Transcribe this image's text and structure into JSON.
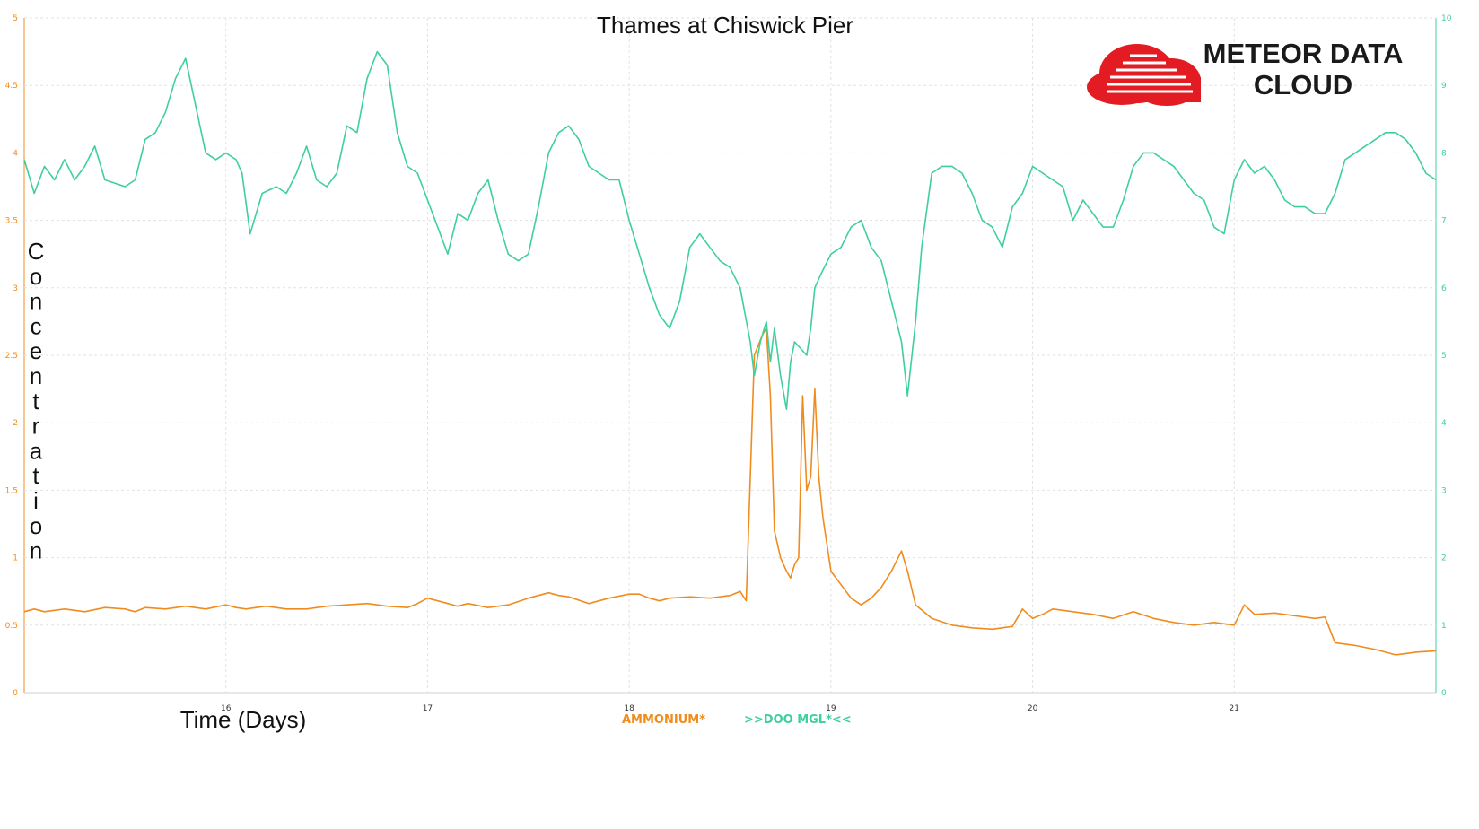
{
  "brand": {
    "logo_line1": "METEOR DATA",
    "logo_line2": "CLOUD",
    "logo_color": "#e31b23"
  },
  "chart_data": {
    "type": "line",
    "title": "Thames at Chiswick Pier",
    "xlabel": "Time (Days)",
    "ylabel": "Concentration",
    "grid": true,
    "legend_placement": "bottom-center",
    "xlim": [
      15.0,
      22.0
    ],
    "x_ticks": [
      "16",
      "17",
      "18",
      "19",
      "20",
      "21"
    ],
    "y_left": {
      "lim": [
        0,
        5
      ],
      "ticks": [
        "0",
        "0.5",
        "1",
        "1.5",
        "2",
        "2.5",
        "3",
        "3.5",
        "4",
        "4.5",
        "5"
      ],
      "color": "#f08c1e"
    },
    "y_right": {
      "lim": [
        0,
        10
      ],
      "ticks": [
        "0",
        "1",
        "2",
        "3",
        "4",
        "5",
        "6",
        "7",
        "8",
        "9",
        "10"
      ],
      "color": "#3fcf9e"
    },
    "series": [
      {
        "name": "AMMONIUM*",
        "axis": "left",
        "color": "#f08c1e",
        "x": [
          15.0,
          15.05,
          15.1,
          15.2,
          15.3,
          15.4,
          15.5,
          15.55,
          15.6,
          15.7,
          15.8,
          15.9,
          16.0,
          16.05,
          16.1,
          16.15,
          16.2,
          16.3,
          16.4,
          16.5,
          16.6,
          16.7,
          16.8,
          16.9,
          16.95,
          17.0,
          17.05,
          17.1,
          17.15,
          17.2,
          17.3,
          17.4,
          17.5,
          17.6,
          17.65,
          17.7,
          17.8,
          17.9,
          18.0,
          18.05,
          18.1,
          18.15,
          18.2,
          18.3,
          18.4,
          18.5,
          18.55,
          18.58,
          18.62,
          18.66,
          18.68,
          18.7,
          18.72,
          18.75,
          18.78,
          18.8,
          18.82,
          18.84,
          18.86,
          18.88,
          18.9,
          18.92,
          18.94,
          18.96,
          19.0,
          19.05,
          19.1,
          19.15,
          19.2,
          19.25,
          19.3,
          19.35,
          19.38,
          19.42,
          19.5,
          19.6,
          19.7,
          19.8,
          19.9,
          19.95,
          20.0,
          20.05,
          20.1,
          20.2,
          20.3,
          20.4,
          20.5,
          20.6,
          20.7,
          20.8,
          20.9,
          21.0,
          21.05,
          21.1,
          21.2,
          21.3,
          21.4,
          21.45,
          21.5,
          21.6,
          21.7,
          21.8,
          21.9,
          22.0
        ],
        "y": [
          0.6,
          0.62,
          0.6,
          0.62,
          0.6,
          0.63,
          0.62,
          0.6,
          0.63,
          0.62,
          0.64,
          0.62,
          0.65,
          0.63,
          0.62,
          0.63,
          0.64,
          0.62,
          0.62,
          0.64,
          0.65,
          0.66,
          0.64,
          0.63,
          0.66,
          0.7,
          0.68,
          0.66,
          0.64,
          0.66,
          0.63,
          0.65,
          0.7,
          0.74,
          0.72,
          0.71,
          0.66,
          0.7,
          0.73,
          0.73,
          0.7,
          0.68,
          0.7,
          0.71,
          0.7,
          0.72,
          0.75,
          0.68,
          2.5,
          2.65,
          2.7,
          2.2,
          1.2,
          1.0,
          0.9,
          0.85,
          0.95,
          1.0,
          2.2,
          1.5,
          1.6,
          2.25,
          1.6,
          1.3,
          0.9,
          0.8,
          0.7,
          0.65,
          0.7,
          0.78,
          0.9,
          1.05,
          0.9,
          0.65,
          0.55,
          0.5,
          0.48,
          0.47,
          0.49,
          0.62,
          0.55,
          0.58,
          0.62,
          0.6,
          0.58,
          0.55,
          0.6,
          0.55,
          0.52,
          0.5,
          0.52,
          0.5,
          0.65,
          0.58,
          0.59,
          0.57,
          0.55,
          0.56,
          0.37,
          0.35,
          0.32,
          0.28,
          0.3,
          0.31
        ]
      },
      {
        "name": ">>DOO MGL*<<",
        "axis": "right",
        "color": "#3fcf9e",
        "x": [
          15.0,
          15.05,
          15.1,
          15.15,
          15.2,
          15.25,
          15.3,
          15.35,
          15.4,
          15.5,
          15.55,
          15.6,
          15.65,
          15.7,
          15.75,
          15.8,
          15.85,
          15.9,
          15.95,
          16.0,
          16.05,
          16.08,
          16.12,
          16.18,
          16.25,
          16.3,
          16.35,
          16.4,
          16.45,
          16.5,
          16.55,
          16.6,
          16.65,
          16.7,
          16.75,
          16.8,
          16.85,
          16.9,
          16.95,
          17.0,
          17.05,
          17.1,
          17.15,
          17.2,
          17.25,
          17.3,
          17.35,
          17.4,
          17.45,
          17.5,
          17.55,
          17.6,
          17.65,
          17.7,
          17.75,
          17.8,
          17.85,
          17.9,
          17.95,
          18.0,
          18.05,
          18.1,
          18.15,
          18.2,
          18.25,
          18.3,
          18.35,
          18.4,
          18.45,
          18.5,
          18.55,
          18.6,
          18.62,
          18.65,
          18.68,
          18.7,
          18.72,
          18.75,
          18.78,
          18.8,
          18.82,
          18.85,
          18.88,
          18.9,
          18.92,
          18.95,
          19.0,
          19.05,
          19.1,
          19.15,
          19.2,
          19.25,
          19.3,
          19.35,
          19.38,
          19.42,
          19.45,
          19.5,
          19.55,
          19.6,
          19.65,
          19.7,
          19.75,
          19.8,
          19.85,
          19.9,
          19.95,
          20.0,
          20.05,
          20.1,
          20.15,
          20.2,
          20.25,
          20.3,
          20.35,
          20.4,
          20.45,
          20.5,
          20.55,
          20.6,
          20.65,
          20.7,
          20.75,
          20.8,
          20.85,
          20.9,
          20.95,
          21.0,
          21.05,
          21.1,
          21.15,
          21.2,
          21.25,
          21.3,
          21.35,
          21.4,
          21.45,
          21.5,
          21.55,
          21.6,
          21.65,
          21.7,
          21.75,
          21.8,
          21.85,
          21.9,
          21.95,
          22.0
        ],
        "y": [
          7.9,
          7.4,
          7.8,
          7.6,
          7.9,
          7.6,
          7.8,
          8.1,
          7.6,
          7.5,
          7.6,
          8.2,
          8.3,
          8.6,
          9.1,
          9.4,
          8.7,
          8.0,
          7.9,
          8.0,
          7.9,
          7.7,
          6.8,
          7.4,
          7.5,
          7.4,
          7.7,
          8.1,
          7.6,
          7.5,
          7.7,
          8.4,
          8.3,
          9.1,
          9.5,
          9.3,
          8.3,
          7.8,
          7.7,
          7.3,
          6.9,
          6.5,
          7.1,
          7.0,
          7.4,
          7.6,
          7.0,
          6.5,
          6.4,
          6.5,
          7.2,
          8.0,
          8.3,
          8.4,
          8.2,
          7.8,
          7.7,
          7.6,
          7.6,
          7.0,
          6.5,
          6.0,
          5.6,
          5.4,
          5.8,
          6.6,
          6.8,
          6.6,
          6.4,
          6.3,
          6.0,
          5.2,
          4.7,
          5.2,
          5.5,
          4.9,
          5.4,
          4.7,
          4.2,
          4.9,
          5.2,
          5.1,
          5.0,
          5.4,
          6.0,
          6.2,
          6.5,
          6.6,
          6.9,
          7.0,
          6.6,
          6.4,
          5.8,
          5.2,
          4.4,
          5.5,
          6.6,
          7.7,
          7.8,
          7.8,
          7.7,
          7.4,
          7.0,
          6.9,
          6.6,
          7.2,
          7.4,
          7.8,
          7.7,
          7.6,
          7.5,
          7.0,
          7.3,
          7.1,
          6.9,
          6.9,
          7.3,
          7.8,
          8.0,
          8.0,
          7.9,
          7.8,
          7.6,
          7.4,
          7.3,
          6.9,
          6.8,
          7.6,
          7.9,
          7.7,
          7.8,
          7.6,
          7.3,
          7.2,
          7.2,
          7.1,
          7.1,
          7.4,
          7.9,
          8.0,
          8.1,
          8.2,
          8.3,
          8.3,
          8.2,
          8.0,
          7.7,
          7.6
        ]
      }
    ]
  }
}
